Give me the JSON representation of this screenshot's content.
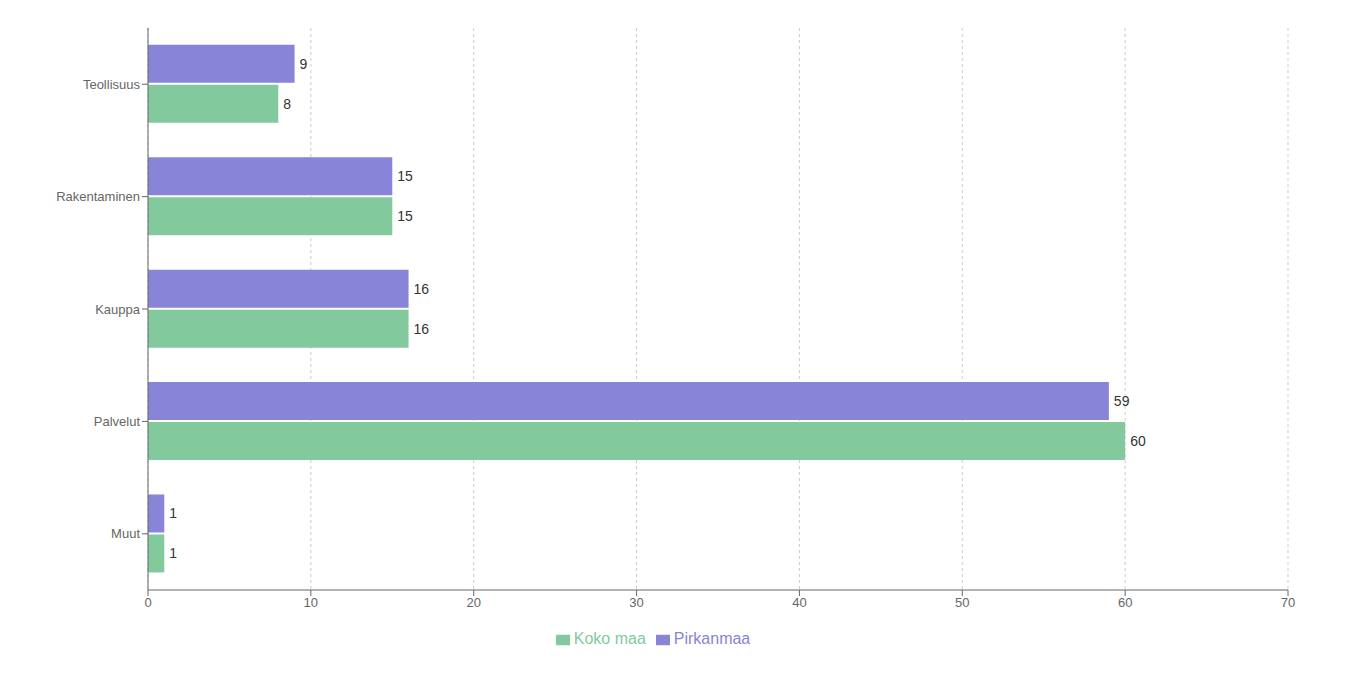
{
  "chart_data": {
    "type": "bar",
    "orientation": "horizontal",
    "categories": [
      "Muut",
      "Palvelut",
      "Kauppa",
      "Rakentaminen",
      "Teollisuus"
    ],
    "series": [
      {
        "name": "Pirkanmaa",
        "color": "#8884d8",
        "values": [
          1,
          59,
          16,
          15,
          9
        ]
      },
      {
        "name": "Koko maa",
        "color": "#82ca9d",
        "values": [
          1,
          60,
          16,
          15,
          8
        ]
      }
    ],
    "xlim": [
      0,
      70
    ],
    "xticks": [
      0,
      10,
      20,
      30,
      40,
      50,
      60,
      70
    ],
    "grid": true,
    "data_labels": true,
    "legend": "bottom"
  }
}
